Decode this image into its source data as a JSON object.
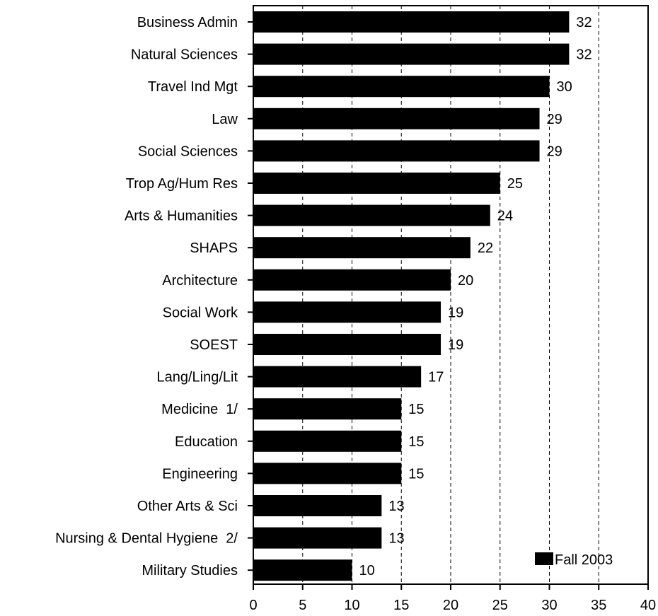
{
  "chart_data": {
    "type": "bar",
    "orientation": "horizontal",
    "categories": [
      "Business Admin",
      "Natural Sciences",
      "Travel Ind Mgt",
      "Law",
      "Social Sciences",
      "Trop Ag/Hum Res",
      "Arts & Humanities",
      "SHAPS",
      "Architecture",
      "Social Work",
      "SOEST",
      "Lang/Ling/Lit",
      "Medicine  1/",
      "Education",
      "Engineering",
      "Other Arts & Sci",
      "Nursing & Dental Hygiene  2/",
      "Military Studies"
    ],
    "series": [
      {
        "name": "Fall 2003",
        "values": [
          32,
          32,
          30,
          29,
          29,
          25,
          24,
          22,
          20,
          19,
          19,
          17,
          15,
          15,
          15,
          13,
          13,
          10
        ],
        "labels": [
          "32",
          "32",
          "30",
          "29",
          "29",
          "25",
          "24",
          "22",
          "20",
          "19",
          "19",
          "17",
          "15",
          "15",
          "15",
          "13",
          "13",
          "10"
        ],
        "color": "#000000"
      }
    ],
    "xlim": [
      0,
      40
    ],
    "xticks": [
      0,
      5,
      10,
      15,
      20,
      25,
      30,
      35,
      40
    ],
    "xtick_labels": [
      "0",
      "5",
      "10",
      "15",
      "20",
      "25",
      "30",
      "35",
      "40"
    ],
    "title": "",
    "xlabel": "",
    "ylabel": "",
    "grid": "vertical dashed",
    "legend_position": "bottom-right"
  }
}
